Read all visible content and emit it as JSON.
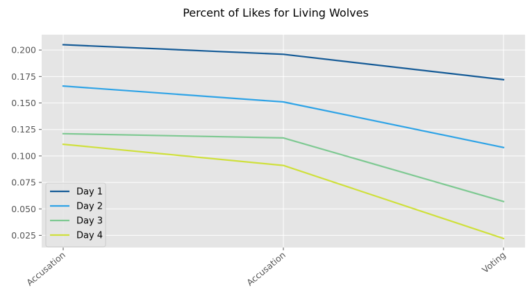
{
  "chart_data": {
    "type": "line",
    "title": "Percent of Likes for Living Wolves",
    "xlabel": "",
    "ylabel": "",
    "categories": [
      "Accusation",
      "Accusation",
      "Voting"
    ],
    "ylim": [
      0.0135,
      0.2145
    ],
    "yticks": [
      0.025,
      0.05,
      0.075,
      0.1,
      0.125,
      0.15,
      0.175,
      0.2
    ],
    "ytick_labels": [
      "0.025",
      "0.050",
      "0.075",
      "0.100",
      "0.125",
      "0.150",
      "0.175",
      "0.200"
    ],
    "grid": true,
    "legend_position": "lower-left",
    "series": [
      {
        "name": "Day 1",
        "color": "#145a96",
        "values": [
          0.205,
          0.196,
          0.172
        ]
      },
      {
        "name": "Day 2",
        "color": "#2ea3e6",
        "values": [
          0.166,
          0.151,
          0.108
        ]
      },
      {
        "name": "Day 3",
        "color": "#7ec992",
        "values": [
          0.121,
          0.117,
          0.057
        ]
      },
      {
        "name": "Day 4",
        "color": "#cfe03c",
        "values": [
          0.111,
          0.091,
          0.022
        ]
      }
    ]
  }
}
